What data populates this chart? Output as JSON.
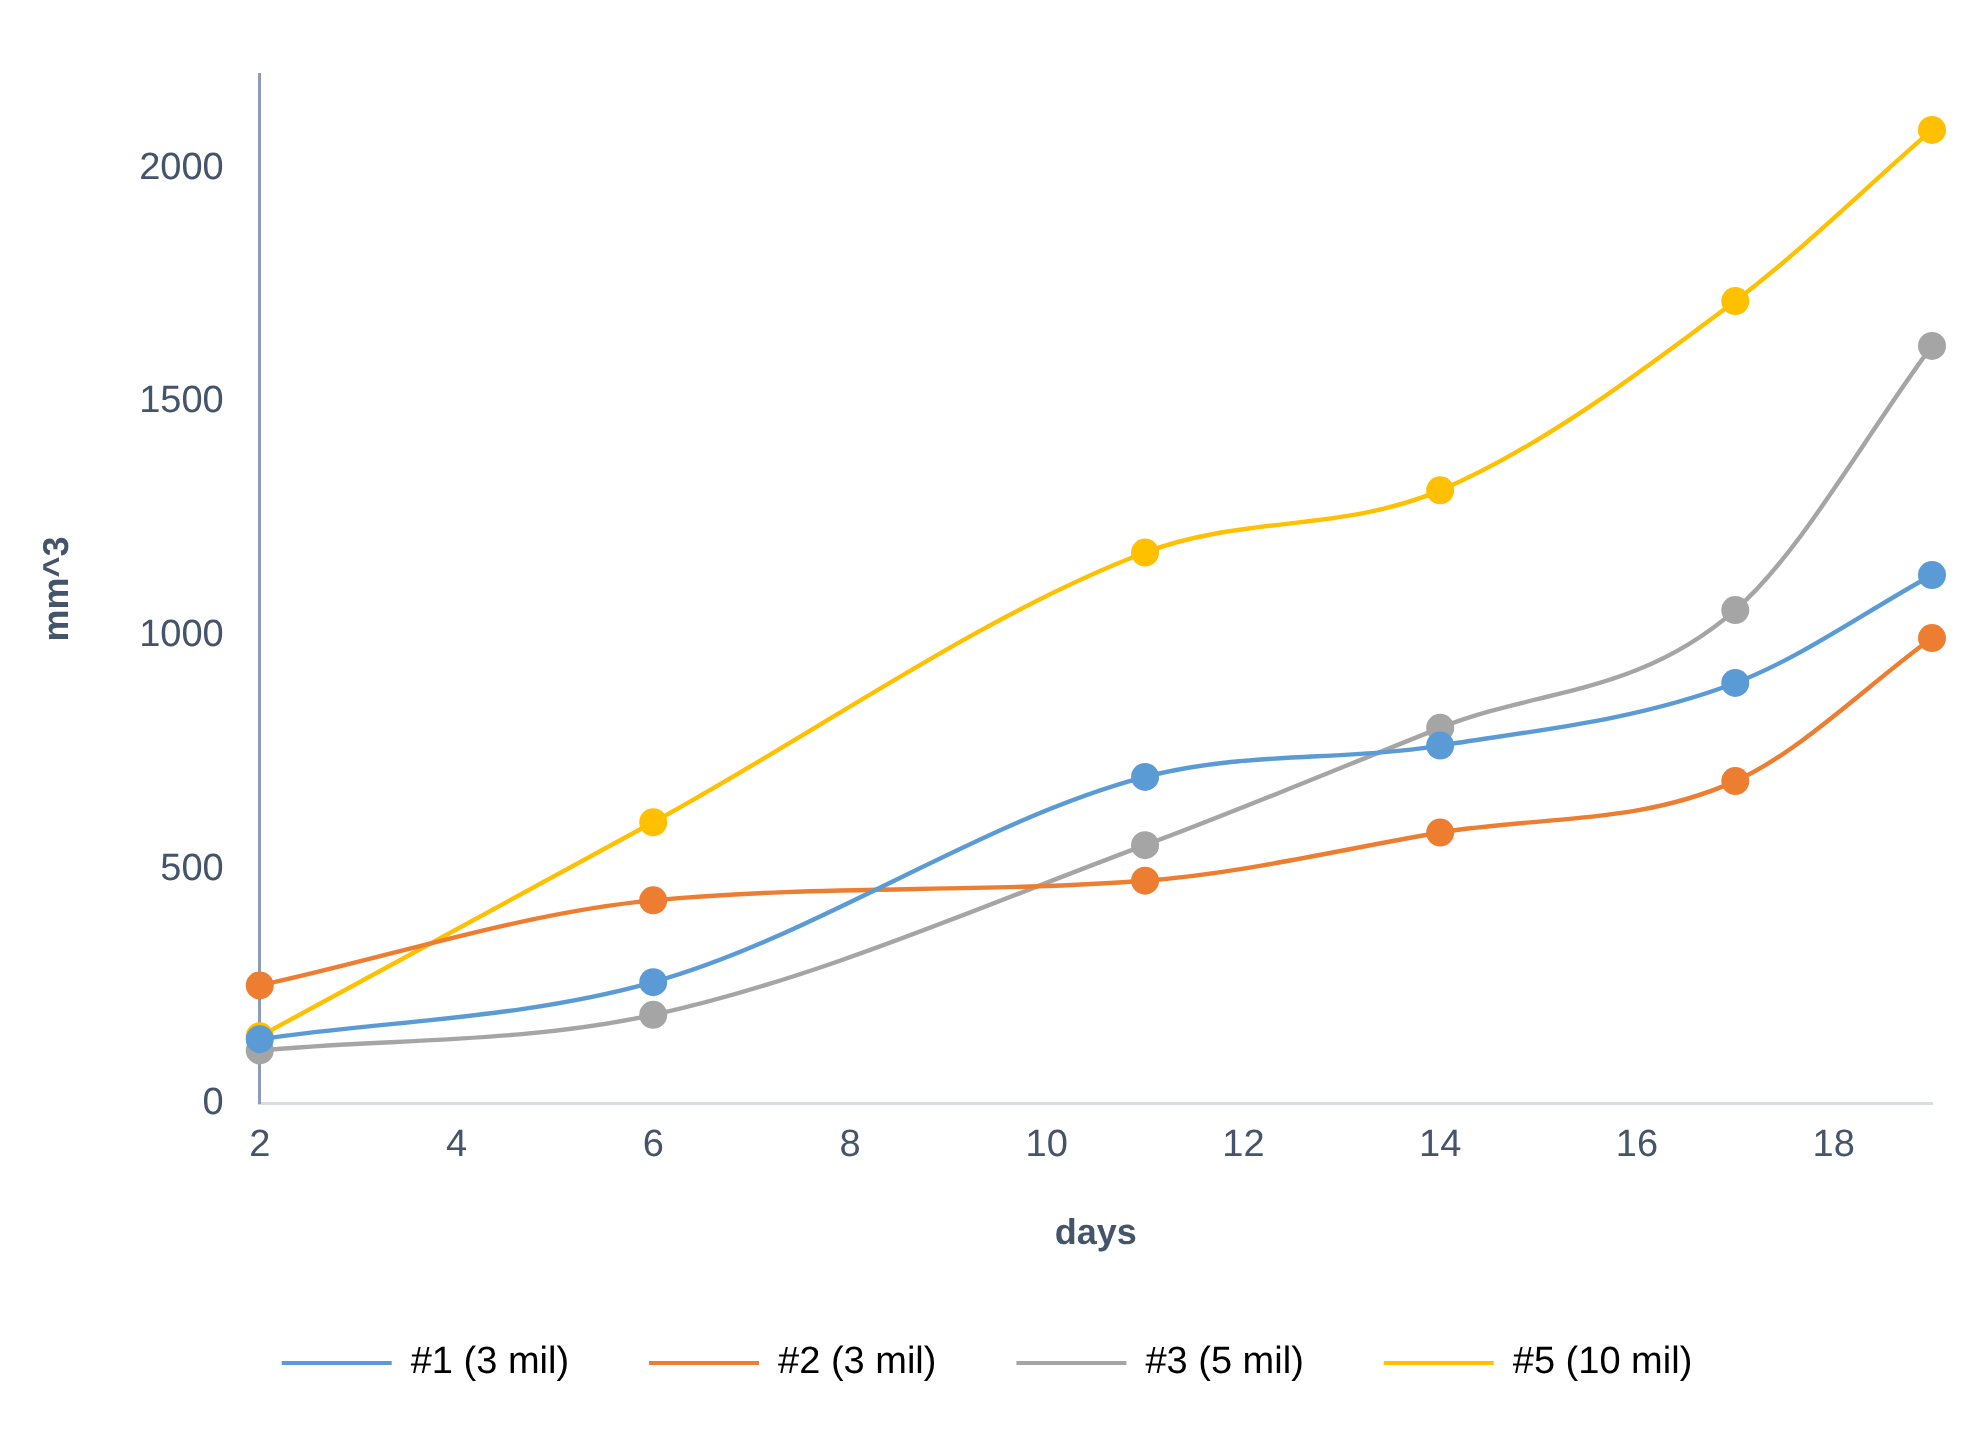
{
  "chart_data": {
    "type": "line",
    "xlabel": "days",
    "ylabel": "mm^3",
    "x": [
      2,
      6,
      11,
      14,
      17,
      19
    ],
    "xlim": [
      2,
      19
    ],
    "xticks": [
      2,
      4,
      6,
      8,
      10,
      12,
      14,
      16,
      18
    ],
    "ylim": [
      0,
      2200
    ],
    "yticks": [
      0,
      500,
      1000,
      1500,
      2000
    ],
    "grid": false,
    "legend": "bottom",
    "marker": "circle",
    "line_style": "solid",
    "series": [
      {
        "name": "#1 (3 mil)",
        "color": "#5b9bd5",
        "values": [
          137,
          259,
          698,
          765,
          899,
          1130
        ]
      },
      {
        "name": "#2 (3 mil)",
        "color": "#ed7d31",
        "values": [
          252,
          434,
          476,
          579,
          689,
          995
        ]
      },
      {
        "name": "#3 (5 mil)",
        "color": "#a5a5a5",
        "values": [
          113,
          189,
          552,
          803,
          1055,
          1620
        ]
      },
      {
        "name": "#5 (10 mil)",
        "color": "#ffc000",
        "values": [
          143,
          601,
          1178,
          1311,
          1716,
          2082
        ]
      }
    ]
  }
}
